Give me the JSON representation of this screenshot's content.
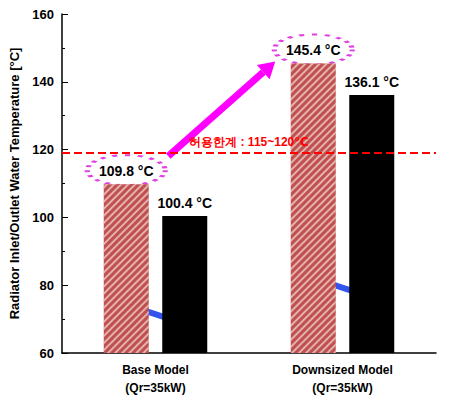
{
  "chart_data": {
    "type": "bar",
    "y_label": "Radiator Inlet/Outlet Water Temperature [°C]",
    "categories": [
      "Base Model\n(Qr=35kW)",
      "Downsized Model\n(Qr=35kW)"
    ],
    "series": [
      {
        "color": "#c0504d",
        "values": [
          109.8,
          145.4
        ],
        "value_labels": [
          "109.8 °C",
          "145.4 °C"
        ]
      },
      {
        "color": "#000000",
        "values": [
          100.4,
          136.1
        ],
        "value_labels": [
          "100.4 °C",
          "136.1 °C"
        ]
      }
    ],
    "ylim": [
      60,
      160
    ],
    "yticks": [
      60,
      80,
      100,
      120,
      140,
      160
    ],
    "data_labels": true,
    "grid": false,
    "annotations": [
      {
        "text": "허용한계 : 115~120℃",
        "y": 119
      }
    ]
  }
}
